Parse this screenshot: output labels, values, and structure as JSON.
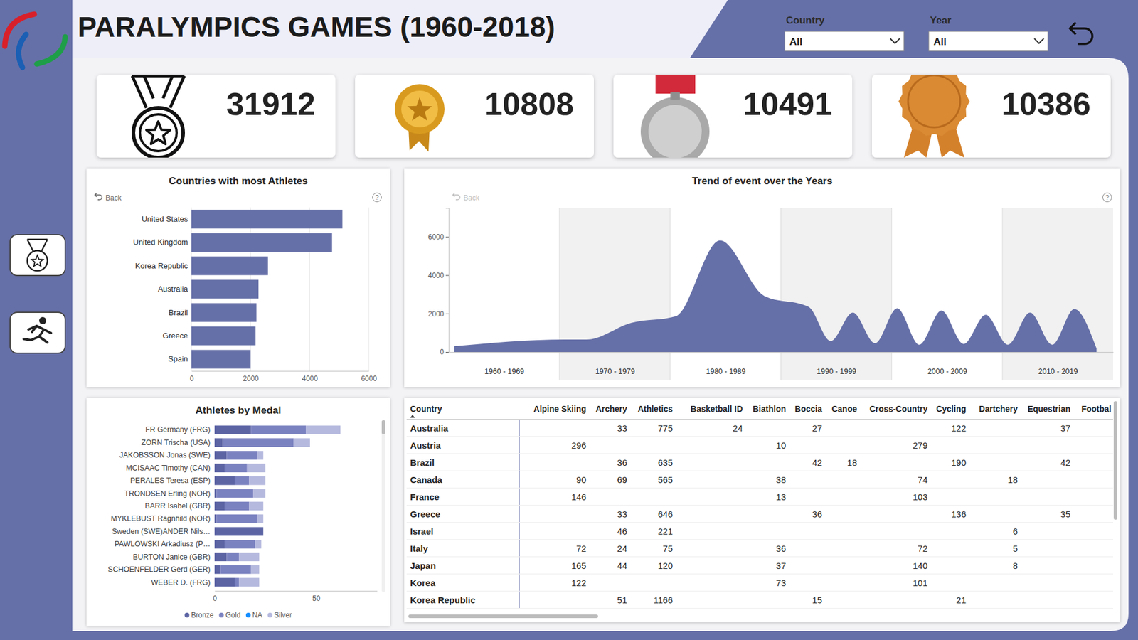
{
  "header": {
    "title": "PARALYMPICS GAMES (1960-2018)",
    "filters": [
      {
        "label": "Country",
        "value": "All"
      },
      {
        "label": "Year",
        "value": "All"
      }
    ]
  },
  "kpis": [
    31912,
    10808,
    10491,
    10386
  ],
  "controls": {
    "back": "Back",
    "help": "?"
  },
  "chart_data": [
    {
      "type": "bar",
      "title": "Countries with most Athletes",
      "orientation": "horizontal",
      "categories": [
        "United States",
        "United Kingdom",
        "Korea Republic",
        "Australia",
        "Brazil",
        "Greece",
        "Spain"
      ],
      "values": [
        5110,
        4760,
        2590,
        2270,
        2200,
        2170,
        2000
      ],
      "color": "#6670a8",
      "xlim": [
        0,
        6000
      ],
      "xticks": [
        0,
        2000,
        4000,
        6000
      ],
      "grid": true
    },
    {
      "type": "area",
      "title": "Trend of event over the Years",
      "x": [
        1960,
        1970,
        1972,
        1976,
        1980,
        1984,
        1988,
        1992,
        1994,
        1996,
        1998,
        2000,
        2002,
        2004,
        2006,
        2008,
        2010,
        2012,
        2014,
        2016,
        2018
      ],
      "values": [
        300,
        650,
        650,
        1520,
        1860,
        5810,
        2920,
        2350,
        570,
        2050,
        455,
        2280,
        380,
        2160,
        420,
        1940,
        380,
        2050,
        380,
        2240,
        190
      ],
      "color": "#6670a8",
      "xlim": [
        1959.5,
        2019.5
      ],
      "xticks": [
        {
          "value": 1964.5,
          "label": "1960 - 1969"
        },
        {
          "value": 1974.5,
          "label": "1970 - 1979"
        },
        {
          "value": 1984.5,
          "label": "1980 - 1989"
        },
        {
          "value": 1994.5,
          "label": "1990 - 1999"
        },
        {
          "value": 2004.5,
          "label": "2000 - 2009"
        },
        {
          "value": 2014.5,
          "label": "2010 - 2019"
        }
      ],
      "ylim": [
        0,
        7500
      ],
      "yticks": [
        0,
        2000,
        4000,
        6000
      ],
      "grid": false
    },
    {
      "type": "bar",
      "title": "Athletes by Medal",
      "orientation": "horizontal",
      "stacked": true,
      "categories": [
        "FR Germany (FRG)",
        "ZORN Trischa (USA)",
        "JAKOBSSON Jonas (SWE)",
        "MCISAAC Timothy (CAN)",
        "PERALES Teresa (ESP)",
        "TRONDSEN Erling (NOR)",
        "BARR Isabel (GBR)",
        "MYKLEBUST Ragnhild (NOR)",
        "Sweden (SWE)ANDER Nils…",
        "PAWLOWSKI Arkadiusz (P…",
        "BURTON Janice (GBR)",
        "SCHOENFELDER Gerd (GER)",
        "WEBER D. (FRG)"
      ],
      "series": [
        {
          "name": "Bronze",
          "color": "#5c64a4",
          "values": [
            18,
            4,
            6,
            5,
            10,
            1,
            5,
            1,
            24,
            5,
            6,
            3,
            10
          ]
        },
        {
          "name": "Gold",
          "color": "#7b82c0",
          "values": [
            27,
            35,
            15,
            11,
            7,
            18,
            12,
            20,
            0,
            15,
            6,
            15,
            2
          ]
        },
        {
          "name": "NA",
          "color": "#118dff",
          "values": [
            0,
            0,
            0,
            0,
            0,
            0,
            0,
            0,
            0,
            0,
            0,
            0,
            0
          ]
        },
        {
          "name": "Silver",
          "color": "#b5b9de",
          "values": [
            17,
            8,
            3,
            9,
            8,
            6,
            7,
            3,
            0,
            3,
            10,
            4,
            10
          ]
        }
      ],
      "xlim": [
        0,
        80
      ],
      "xticks": [
        0,
        50
      ],
      "legend": "bottom"
    }
  ],
  "table": {
    "columns": [
      "Country",
      "Alpine Skiing",
      "Archery",
      "Athletics",
      "Basketball ID",
      "Biathlon",
      "Boccia",
      "Canoe",
      "Cross-Country",
      "Cycling",
      "Dartchery",
      "Equestrian",
      "Footbal"
    ],
    "rows": [
      [
        "Australia",
        null,
        33,
        775,
        24,
        null,
        27,
        null,
        null,
        122,
        null,
        37,
        null
      ],
      [
        "Austria",
        296,
        null,
        null,
        null,
        10,
        null,
        null,
        279,
        null,
        null,
        null,
        null
      ],
      [
        "Brazil",
        null,
        36,
        635,
        null,
        null,
        42,
        18,
        null,
        190,
        null,
        42,
        null
      ],
      [
        "Canada",
        90,
        69,
        565,
        null,
        38,
        null,
        null,
        74,
        null,
        18,
        null,
        null
      ],
      [
        "France",
        146,
        null,
        null,
        null,
        13,
        null,
        null,
        103,
        null,
        null,
        null,
        null
      ],
      [
        "Greece",
        null,
        33,
        646,
        null,
        null,
        36,
        null,
        null,
        136,
        null,
        35,
        null
      ],
      [
        "Israel",
        null,
        46,
        221,
        null,
        null,
        null,
        null,
        null,
        null,
        6,
        null,
        null
      ],
      [
        "Italy",
        72,
        24,
        75,
        null,
        36,
        null,
        null,
        72,
        null,
        5,
        null,
        null
      ],
      [
        "Japan",
        165,
        44,
        120,
        null,
        37,
        null,
        null,
        140,
        null,
        8,
        null,
        null
      ],
      [
        "Korea",
        122,
        null,
        null,
        null,
        73,
        null,
        null,
        101,
        null,
        null,
        null,
        null
      ],
      [
        "Korea Republic",
        null,
        51,
        1166,
        null,
        null,
        15,
        null,
        null,
        21,
        null,
        null,
        null
      ]
    ]
  }
}
